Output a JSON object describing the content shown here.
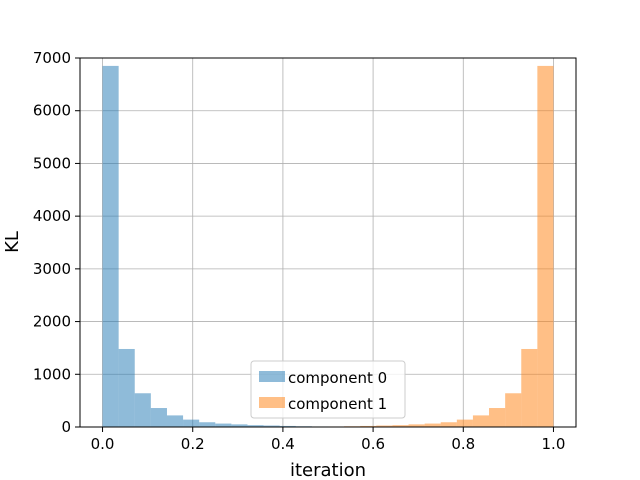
{
  "chart_data": {
    "type": "bar",
    "title": "",
    "xlabel": "iteration",
    "ylabel": "KL",
    "xlim": [
      -0.05,
      1.05
    ],
    "ylim": [
      0,
      7000
    ],
    "grid": true,
    "legend_position": "bottom-center",
    "x_ticks": [
      "0.0",
      "0.2",
      "0.4",
      "0.6",
      "0.8",
      "1.0"
    ],
    "y_ticks": [
      "0",
      "1000",
      "2000",
      "3000",
      "4000",
      "5000",
      "6000",
      "7000"
    ],
    "bin_edges": [
      0.0,
      0.0357,
      0.0714,
      0.1071,
      0.1429,
      0.1786,
      0.2143,
      0.25,
      0.2857,
      0.3214,
      0.3571,
      0.3929,
      0.4286,
      0.4643,
      0.5,
      0.5357,
      0.5714,
      0.6071,
      0.6429,
      0.6786,
      0.7143,
      0.75,
      0.7857,
      0.8214,
      0.8571,
      0.8929,
      0.9286,
      0.9643,
      1.0
    ],
    "series": [
      {
        "name": "component 0",
        "color": "#1f77b4",
        "values": [
          6850,
          1480,
          640,
          360,
          220,
          140,
          90,
          65,
          50,
          35,
          28,
          20,
          14,
          10,
          8,
          6,
          5,
          4,
          3,
          2,
          2,
          1,
          1,
          1,
          0,
          0,
          0,
          0
        ]
      },
      {
        "name": "component 1",
        "color": "#ff7f0e",
        "values": [
          0,
          0,
          0,
          0,
          1,
          1,
          1,
          2,
          2,
          3,
          4,
          5,
          6,
          8,
          10,
          14,
          20,
          28,
          35,
          50,
          65,
          90,
          140,
          220,
          360,
          640,
          1480,
          6850
        ]
      }
    ]
  }
}
